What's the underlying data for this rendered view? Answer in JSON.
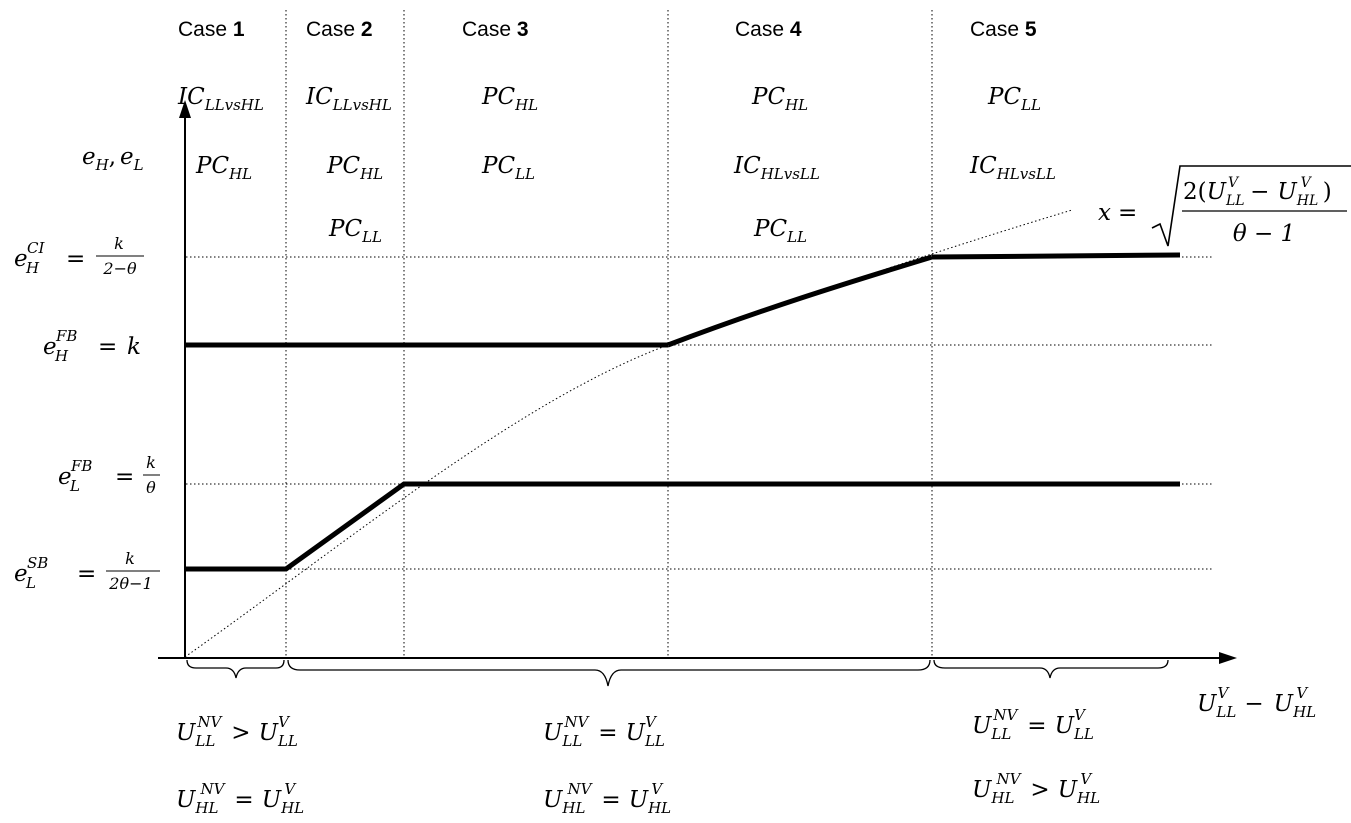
{
  "colors": {
    "ink": "#000000",
    "background": "#ffffff"
  },
  "case_headers": [
    {
      "word": "Case",
      "num": "1"
    },
    {
      "word": "Case",
      "num": "2"
    },
    {
      "word": "Case",
      "num": "3"
    },
    {
      "word": "Case",
      "num": "4"
    },
    {
      "word": "Case",
      "num": "5"
    }
  ],
  "constraints": {
    "case1": [
      {
        "base": "IC",
        "sub": "LLvsHL"
      },
      {
        "base": "PC",
        "sub": "HL"
      }
    ],
    "case2": [
      {
        "base": "IC",
        "sub": "LLvsHL"
      },
      {
        "base": "PC",
        "sub": "HL"
      },
      {
        "base": "PC",
        "sub": "LL"
      }
    ],
    "case3": [
      {
        "base": "PC",
        "sub": "HL"
      },
      {
        "base": "PC",
        "sub": "LL"
      }
    ],
    "case4": [
      {
        "base": "PC",
        "sub": "HL"
      },
      {
        "base": "IC",
        "sub": "HLvsLL"
      },
      {
        "base": "PC",
        "sub": "LL"
      }
    ],
    "case5": [
      {
        "base": "PC",
        "sub": "LL"
      },
      {
        "base": "IC",
        "sub": "HLvsLL"
      }
    ]
  },
  "y_axis_label": {
    "a": "e",
    "a_sub": "H",
    "sep": ",",
    "b": "e",
    "b_sub": "L"
  },
  "x_axis_label": {
    "a": "U",
    "a_sub": "LL",
    "a_sup": "V",
    "op": "−",
    "b": "U",
    "b_sub": "HL",
    "b_sup": "V"
  },
  "y_levels": {
    "e_H_CI": {
      "base": "e",
      "sub": "H",
      "sup": "CI",
      "eq": "=",
      "num": "k",
      "den": "2−θ"
    },
    "e_H_FB": {
      "base": "e",
      "sub": "H",
      "sup": "FB",
      "eq": "=",
      "rhs": "k"
    },
    "e_L_FB": {
      "base": "e",
      "sub": "L",
      "sup": "FB",
      "eq": "=",
      "num": "k",
      "den": "θ"
    },
    "e_L_SB": {
      "base": "e",
      "sub": "L",
      "sup": "SB",
      "eq": "=",
      "num": "k",
      "den": "2θ−1"
    }
  },
  "curve_formula": {
    "lhs": "x",
    "eq": "=",
    "num_prefix": "2(",
    "num_a": "U",
    "num_a_sub": "LL",
    "num_a_sup": "V",
    "num_op": "−",
    "num_b": "U",
    "num_b_sub": "HL",
    "num_b_sup": "V",
    "num_suffix": ")",
    "den": "θ − 1"
  },
  "bottom_conditions": {
    "left": [
      {
        "u": "U",
        "sub": "LL",
        "sup": "NV",
        "rel": ">",
        "u2": "U",
        "sub2": "LL",
        "sup2": "V"
      },
      {
        "u": "U",
        "sub": "HL",
        "sup": "NV",
        "rel": "=",
        "u2": "U",
        "sub2": "HL",
        "sup2": "V"
      }
    ],
    "middle": [
      {
        "u": "U",
        "sub": "LL",
        "sup": "NV",
        "rel": "=",
        "u2": "U",
        "sub2": "LL",
        "sup2": "V"
      },
      {
        "u": "U",
        "sub": "HL",
        "sup": "NV",
        "rel": "=",
        "u2": "U",
        "sub2": "HL",
        "sup2": "V"
      }
    ],
    "right": [
      {
        "u": "U",
        "sub": "LL",
        "sup": "NV",
        "rel": "=",
        "u2": "U",
        "sub2": "LL",
        "sup2": "V"
      },
      {
        "u": "U",
        "sub": "HL",
        "sup": "NV",
        "rel": ">",
        "u2": "U",
        "sub2": "HL",
        "sup2": "V"
      }
    ]
  }
}
